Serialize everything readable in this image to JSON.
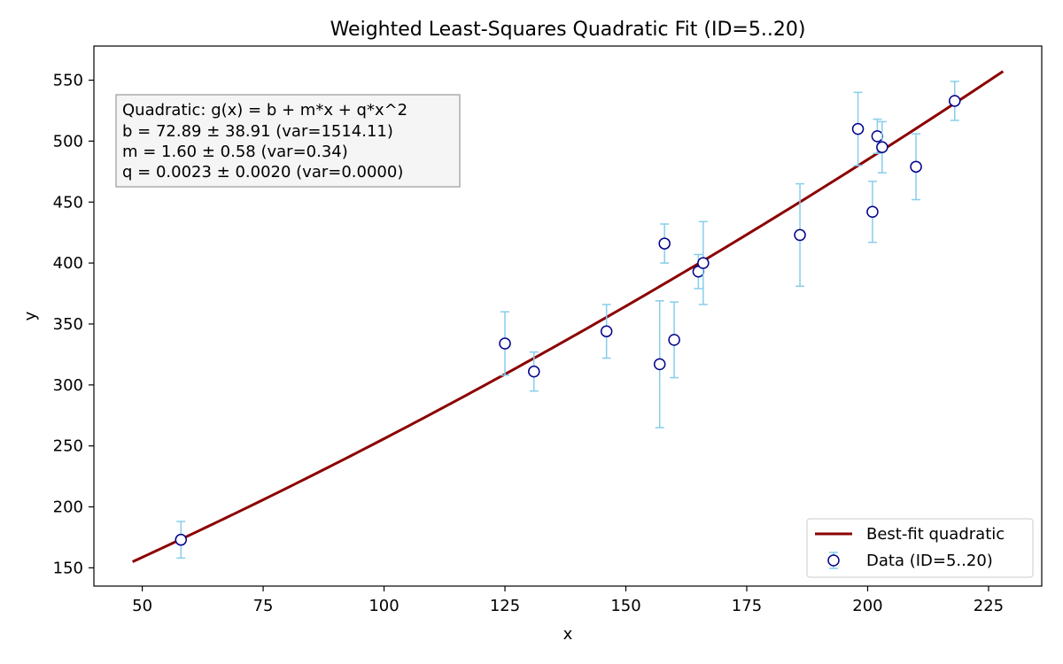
{
  "chart_data": {
    "type": "scatter",
    "title": "Weighted Least-Squares Quadratic Fit (ID=5..20)",
    "xlabel": "x",
    "ylabel": "y",
    "xlim": [
      40,
      236
    ],
    "ylim": [
      135,
      578
    ],
    "xticks": [
      50,
      75,
      100,
      125,
      150,
      175,
      200,
      225
    ],
    "yticks": [
      150,
      200,
      250,
      300,
      350,
      400,
      450,
      500,
      550
    ],
    "grid": false,
    "legend_position": "lower-right",
    "annotation": {
      "lines": [
        "Quadratic: g(x) = b + m*x + q*x^2",
        "b = 72.89 ± 38.91  (var=1514.11)",
        "m = 1.60 ± 0.58  (var=0.34)",
        "q = 0.0023 ± 0.0020  (var=0.0000)"
      ]
    },
    "fit": {
      "name": "Best-fit quadratic",
      "color": "#8b0000",
      "b": 72.89,
      "m": 1.6,
      "q": 0.0023,
      "x_range": [
        48,
        228
      ]
    },
    "series": [
      {
        "name": "Data (ID=5..20)",
        "marker_edge_color": "#00008b",
        "marker_face_color": "#ffffff",
        "errorbar_color": "#87ceeb",
        "points": [
          {
            "x": 58,
            "y": 173,
            "err": 15
          },
          {
            "x": 125,
            "y": 334,
            "err": 26
          },
          {
            "x": 131,
            "y": 311,
            "err": 16
          },
          {
            "x": 146,
            "y": 344,
            "err": 22
          },
          {
            "x": 157,
            "y": 317,
            "err": 52
          },
          {
            "x": 158,
            "y": 416,
            "err": 16
          },
          {
            "x": 160,
            "y": 337,
            "err": 31
          },
          {
            "x": 165,
            "y": 393,
            "err": 14
          },
          {
            "x": 166,
            "y": 400,
            "err": 34
          },
          {
            "x": 186,
            "y": 423,
            "err": 42
          },
          {
            "x": 198,
            "y": 510,
            "err": 30
          },
          {
            "x": 201,
            "y": 442,
            "err": 25
          },
          {
            "x": 202,
            "y": 504,
            "err": 14
          },
          {
            "x": 203,
            "y": 495,
            "err": 21
          },
          {
            "x": 210,
            "y": 479,
            "err": 27
          },
          {
            "x": 218,
            "y": 533,
            "err": 16
          }
        ]
      }
    ]
  }
}
